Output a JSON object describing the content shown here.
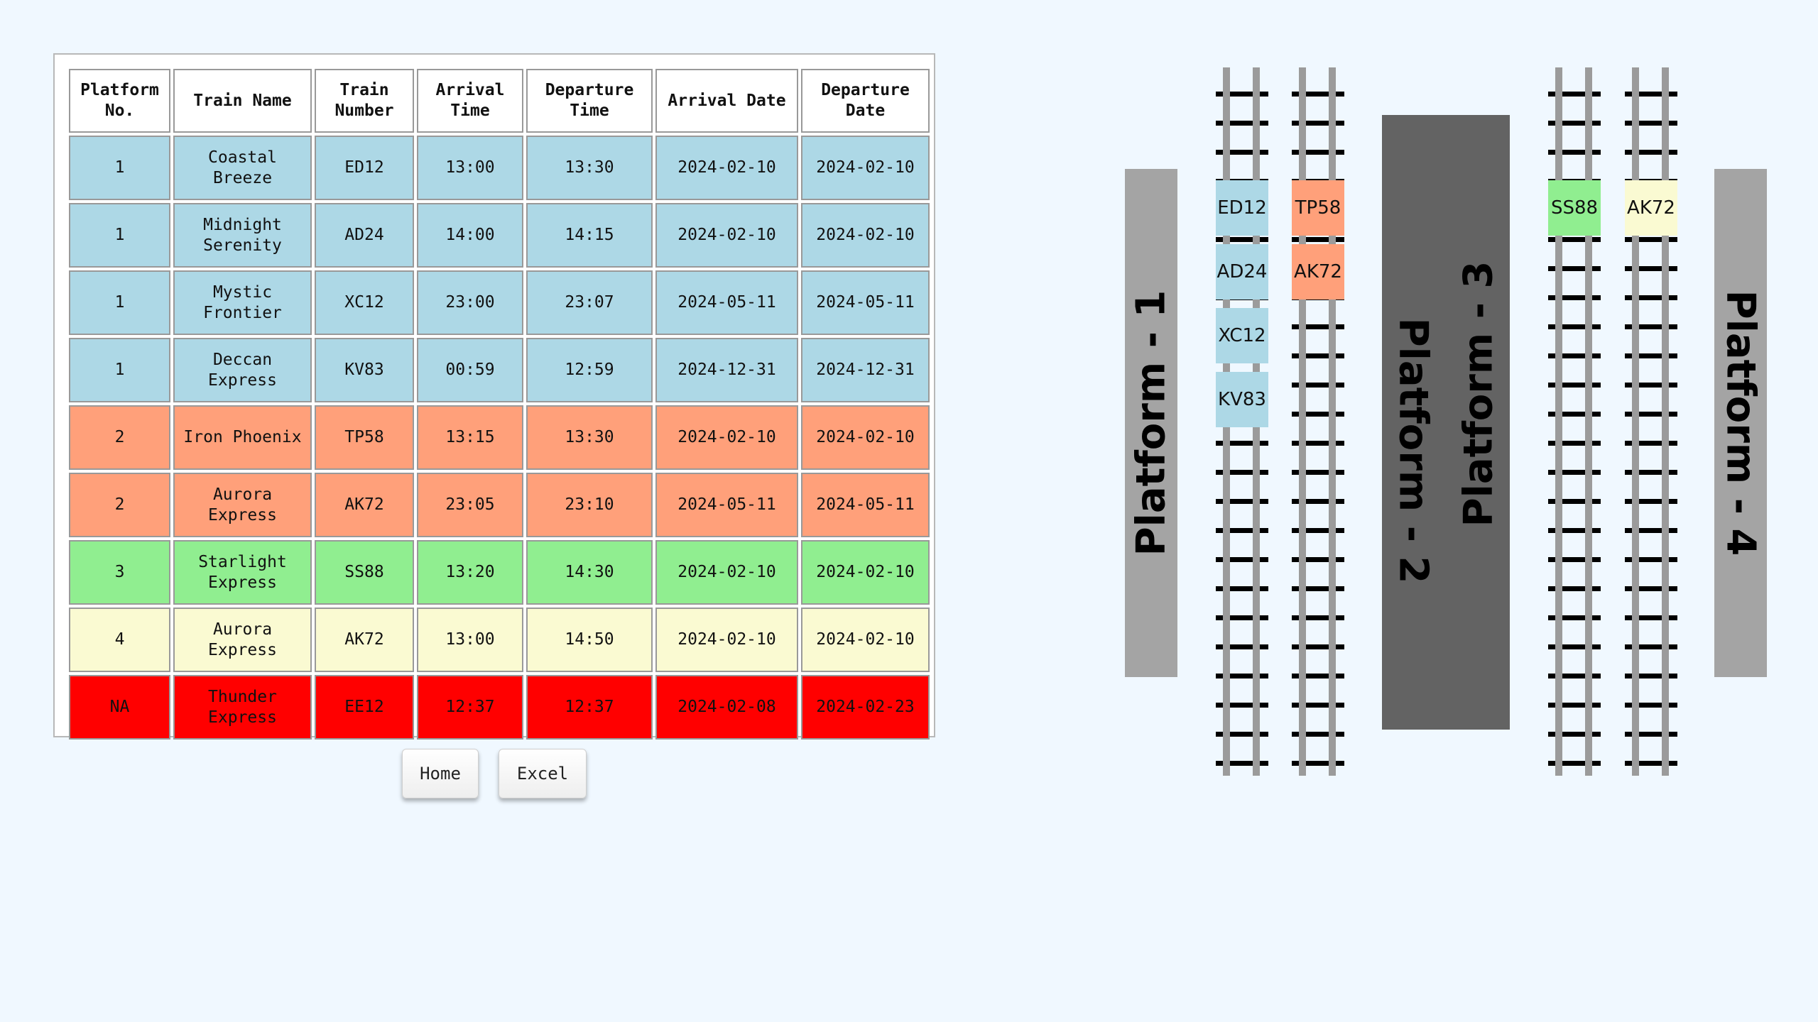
{
  "table": {
    "headers": [
      "Platform No.",
      "Train Name",
      "Train Number",
      "Arrival Time",
      "Departure Time",
      "Arrival Date",
      "Departure Date"
    ],
    "rows": [
      [
        "1",
        "Coastal Breeze",
        "ED12",
        "13:00",
        "13:30",
        "2024-02-10",
        "2024-02-10"
      ],
      [
        "1",
        "Midnight Serenity",
        "AD24",
        "14:00",
        "14:15",
        "2024-02-10",
        "2024-02-10"
      ],
      [
        "1",
        "Mystic Frontier",
        "XC12",
        "23:00",
        "23:07",
        "2024-05-11",
        "2024-05-11"
      ],
      [
        "1",
        "Deccan Express",
        "KV83",
        "00:59",
        "12:59",
        "2024-12-31",
        "2024-12-31"
      ],
      [
        "2",
        "Iron Phoenix",
        "TP58",
        "13:15",
        "13:30",
        "2024-02-10",
        "2024-02-10"
      ],
      [
        "2",
        "Aurora Express",
        "AK72",
        "23:05",
        "23:10",
        "2024-05-11",
        "2024-05-11"
      ],
      [
        "3",
        "Starlight Express",
        "SS88",
        "13:20",
        "14:30",
        "2024-02-10",
        "2024-02-10"
      ],
      [
        "4",
        "Aurora Express",
        "AK72",
        "13:00",
        "14:50",
        "2024-02-10",
        "2024-02-10"
      ],
      [
        "NA",
        "Thunder Express",
        "EE12",
        "12:37",
        "12:37",
        "2024-02-08",
        "2024-02-23"
      ]
    ]
  },
  "buttons": {
    "home": "Home",
    "excel": "Excel"
  },
  "map": {
    "platforms": [
      "Platform - 1",
      "Platform - 2",
      "Platform - 3",
      "Platform - 4"
    ],
    "tracks": [
      [
        "ED12",
        "AD24",
        "XC12",
        "KV83"
      ],
      [
        "TP58",
        "AK72"
      ],
      [
        "SS88"
      ],
      [
        "AK72"
      ]
    ]
  },
  "colors": {
    "platform_1": "#add8e6",
    "platform_2": "#ffa07a",
    "platform_3": "#90ee90",
    "platform_4": "#fafad2",
    "unassigned": "#ff0000",
    "platform_side": "#a4a4a4",
    "platform_island": "#636363",
    "background": "#f0f8ff"
  }
}
